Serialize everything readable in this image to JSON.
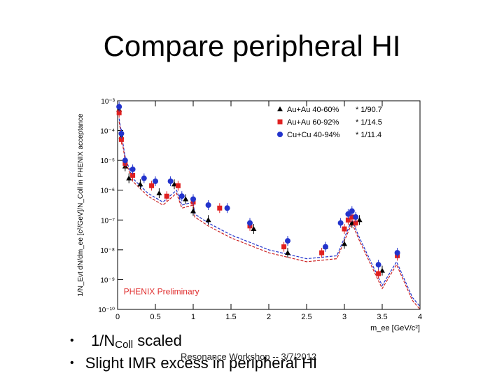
{
  "slide": {
    "title": "Compare peripheral HI",
    "footer": "Resonance Workshop -- 3/7/2012"
  },
  "bullets": [
    {
      "prefix": "1/N",
      "sub": "Coll",
      "suffix": " scaled"
    },
    {
      "text": "Slight IMR excess in peripheral HI"
    }
  ],
  "chart_data": {
    "type": "scatter",
    "title": "",
    "xlabel": "m_ee [GeV/c²]",
    "ylabel": "1/N_Evt dN/dm_ee [c²/GeV]/N_Coll in PHENIX acceptance",
    "xlim": [
      0,
      4
    ],
    "ylim_log10": [
      -10,
      -3
    ],
    "x_ticks": [
      "0",
      "0.5",
      "1",
      "1.5",
      "2",
      "2.5",
      "3",
      "3.5",
      "4"
    ],
    "y_ticks": [
      "10⁻³",
      "10⁻⁴",
      "10⁻⁵",
      "10⁻⁶",
      "10⁻⁷",
      "10⁻⁸",
      "10⁻⁹",
      "10⁻¹⁰"
    ],
    "watermark": "PHENIX Preliminary",
    "legend_position": "top-right",
    "series": [
      {
        "name": "Au+Au 40-60%",
        "scale": "* 1/90.7",
        "marker": "triangle",
        "color": "#000000",
        "x": [
          0.02,
          0.05,
          0.1,
          0.15,
          0.3,
          0.55,
          0.75,
          0.9,
          1.0,
          1.2,
          1.8,
          2.25,
          2.75,
          3.0,
          3.1,
          3.2,
          3.5
        ],
        "y": [
          -3.3,
          -4.2,
          -5.2,
          -5.6,
          -5.8,
          -6.1,
          -5.8,
          -6.3,
          -6.7,
          -7.0,
          -7.3,
          -8.1,
          -7.9,
          -7.8,
          -7.1,
          -7.0,
          -8.7
        ]
      },
      {
        "name": "Au+Au 60-92%",
        "scale": "* 1/14.5",
        "marker": "square",
        "color": "#e02020",
        "x": [
          0.02,
          0.05,
          0.1,
          0.2,
          0.45,
          0.65,
          0.8,
          1.0,
          1.35,
          1.75,
          2.2,
          2.7,
          3.0,
          3.05,
          3.1,
          3.15,
          3.45,
          3.7
        ],
        "y": [
          -3.4,
          -4.3,
          -5.1,
          -5.5,
          -5.85,
          -6.2,
          -5.85,
          -6.4,
          -6.6,
          -7.2,
          -7.9,
          -8.1,
          -7.3,
          -7.0,
          -6.9,
          -7.1,
          -8.8,
          -8.2
        ]
      },
      {
        "name": "Cu+Cu 40-94%",
        "scale": "* 1/11.4",
        "marker": "circle",
        "color": "#2233cc",
        "x": [
          0.02,
          0.05,
          0.1,
          0.2,
          0.35,
          0.5,
          0.7,
          0.85,
          1.0,
          1.2,
          1.45,
          1.75,
          2.25,
          2.75,
          2.95,
          3.05,
          3.1,
          3.15,
          3.45,
          3.7
        ],
        "y": [
          -3.2,
          -4.1,
          -5.0,
          -5.3,
          -5.6,
          -5.7,
          -5.7,
          -6.2,
          -6.3,
          -6.5,
          -6.6,
          -7.1,
          -7.7,
          -7.9,
          -7.1,
          -6.8,
          -6.7,
          -6.9,
          -8.5,
          -8.1
        ]
      }
    ],
    "expected_curves": [
      {
        "name": "cocktail",
        "color": "#2233cc",
        "x": [
          0.02,
          0.1,
          0.2,
          0.4,
          0.6,
          0.78,
          0.85,
          1.0,
          1.02,
          1.2,
          1.5,
          2.0,
          2.5,
          2.9,
          3.0,
          3.1,
          3.2,
          3.5,
          3.69,
          3.9,
          4.0
        ],
        "y": [
          -3.6,
          -4.9,
          -5.6,
          -6.1,
          -6.4,
          -6.0,
          -6.5,
          -6.4,
          -6.8,
          -7.1,
          -7.5,
          -8.0,
          -8.3,
          -8.2,
          -7.6,
          -7.0,
          -7.6,
          -9.2,
          -8.4,
          -9.6,
          -9.9
        ]
      },
      {
        "name": "cocktail-peripheral",
        "color": "#cc2222",
        "x": [
          0.02,
          0.1,
          0.2,
          0.4,
          0.6,
          0.78,
          0.85,
          1.0,
          1.02,
          1.2,
          1.5,
          2.0,
          2.5,
          2.9,
          3.0,
          3.1,
          3.2,
          3.5,
          3.69,
          3.9,
          4.0
        ],
        "y": [
          -3.7,
          -5.0,
          -5.7,
          -6.2,
          -6.5,
          -6.1,
          -6.6,
          -6.5,
          -6.9,
          -7.2,
          -7.6,
          -8.1,
          -8.4,
          -8.3,
          -7.7,
          -7.1,
          -7.7,
          -9.3,
          -8.5,
          -9.7,
          -10.0
        ]
      }
    ]
  }
}
